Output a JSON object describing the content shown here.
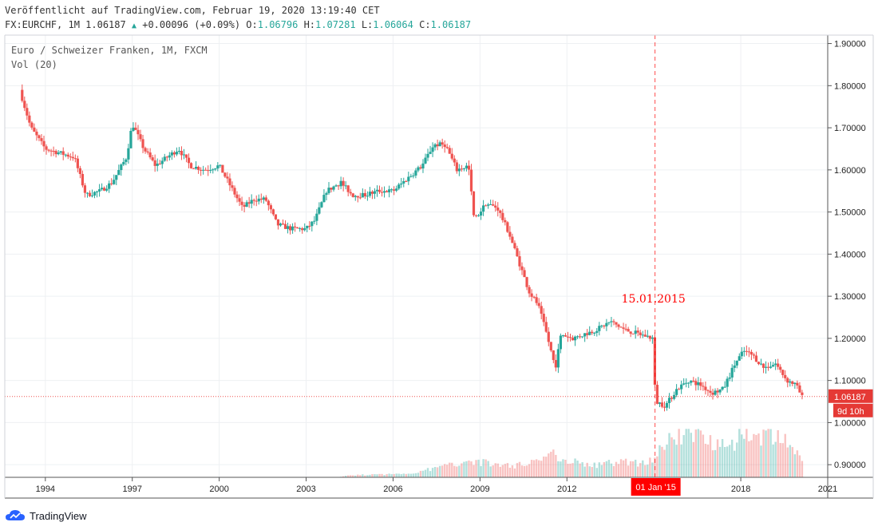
{
  "header": {
    "published": "Veröffentlicht auf TradingView.com, Februar 19, 2020 13:19:40 CET",
    "symbol": "FX:EURCHF, 1M",
    "last": "1.06187",
    "change": "+0.00096 (+0.09%)",
    "o_label": "O:",
    "o_value": "1.06796",
    "h_label": "H:",
    "h_value": "1.07281",
    "l_label": "L:",
    "l_value": "1.06064",
    "c_label": "C:",
    "c_value": "1.06187"
  },
  "legend": {
    "symbol_name": "Euro / Schweizer Franken, 1M, FXCM",
    "volume": "Vol (20)"
  },
  "footer": {
    "brand": "TradingView"
  },
  "colors": {
    "up": "#26a69a",
    "down": "#ef5350",
    "marker": "#ff0000",
    "grid": "#eef0f3"
  },
  "chart_data": {
    "type": "candlestick",
    "y_ticks": [
      "1.90000",
      "1.80000",
      "1.70000",
      "1.60000",
      "1.50000",
      "1.40000",
      "1.30000",
      "1.20000",
      "1.10000",
      "1.00000",
      "0.90000"
    ],
    "x_ticks": [
      "1994",
      "1997",
      "2000",
      "2003",
      "2006",
      "2009",
      "2012",
      "2018",
      "2021"
    ],
    "ylim": [
      0.87,
      1.92
    ],
    "xlim": [
      1992.6,
      2021.0
    ],
    "last_price": "1.06187",
    "last_price_value": 1.06187,
    "countdown": "9d 10h",
    "event_line": {
      "x": 2015.04,
      "label": "15.01.2015",
      "axis_label": "01 Jan '15"
    },
    "price_path": [
      [
        1993.2,
        1.77
      ],
      [
        1993.5,
        1.7
      ],
      [
        1994.0,
        1.65
      ],
      [
        1994.5,
        1.64
      ],
      [
        1995.0,
        1.63
      ],
      [
        1995.4,
        1.54
      ],
      [
        1995.9,
        1.55
      ],
      [
        1996.3,
        1.57
      ],
      [
        1996.8,
        1.63
      ],
      [
        1997.0,
        1.71
      ],
      [
        1997.4,
        1.65
      ],
      [
        1997.8,
        1.61
      ],
      [
        1998.2,
        1.63
      ],
      [
        1998.6,
        1.65
      ],
      [
        1999.0,
        1.61
      ],
      [
        1999.5,
        1.6
      ],
      [
        2000.0,
        1.61
      ],
      [
        2000.4,
        1.56
      ],
      [
        2000.8,
        1.51
      ],
      [
        2001.2,
        1.53
      ],
      [
        2001.6,
        1.53
      ],
      [
        2002.0,
        1.47
      ],
      [
        2002.5,
        1.46
      ],
      [
        2003.0,
        1.46
      ],
      [
        2003.3,
        1.48
      ],
      [
        2003.7,
        1.55
      ],
      [
        2004.2,
        1.57
      ],
      [
        2004.6,
        1.54
      ],
      [
        2005.0,
        1.54
      ],
      [
        2005.5,
        1.55
      ],
      [
        2006.0,
        1.55
      ],
      [
        2006.5,
        1.58
      ],
      [
        2007.0,
        1.61
      ],
      [
        2007.4,
        1.66
      ],
      [
        2007.8,
        1.66
      ],
      [
        2008.2,
        1.6
      ],
      [
        2008.6,
        1.61
      ],
      [
        2008.8,
        1.48
      ],
      [
        2009.2,
        1.52
      ],
      [
        2009.6,
        1.51
      ],
      [
        2010.0,
        1.45
      ],
      [
        2010.4,
        1.37
      ],
      [
        2010.7,
        1.31
      ],
      [
        2011.0,
        1.28
      ],
      [
        2011.3,
        1.21
      ],
      [
        2011.6,
        1.13
      ],
      [
        2011.8,
        1.21
      ],
      [
        2012.2,
        1.2
      ],
      [
        2012.6,
        1.21
      ],
      [
        2013.0,
        1.22
      ],
      [
        2013.5,
        1.24
      ],
      [
        2014.0,
        1.22
      ],
      [
        2014.5,
        1.21
      ],
      [
        2014.98,
        1.2
      ],
      [
        2015.05,
        1.05
      ],
      [
        2015.4,
        1.04
      ],
      [
        2015.8,
        1.08
      ],
      [
        2016.2,
        1.1
      ],
      [
        2016.6,
        1.09
      ],
      [
        2017.0,
        1.07
      ],
      [
        2017.4,
        1.08
      ],
      [
        2017.8,
        1.14
      ],
      [
        2018.1,
        1.17
      ],
      [
        2018.4,
        1.16
      ],
      [
        2018.8,
        1.13
      ],
      [
        2019.2,
        1.14
      ],
      [
        2019.6,
        1.1
      ],
      [
        2019.9,
        1.09
      ],
      [
        2020.12,
        1.06
      ]
    ],
    "volume_profile": [
      [
        2004.1,
        0.0
      ],
      [
        2004.5,
        0.9
      ],
      [
        2005.5,
        1.2
      ],
      [
        2006.5,
        1.6
      ],
      [
        2007.3,
        3.5
      ],
      [
        2008.0,
        5.5
      ],
      [
        2008.6,
        7.5
      ],
      [
        2009.3,
        6.0
      ],
      [
        2010.2,
        5.0
      ],
      [
        2010.8,
        7.0
      ],
      [
        2011.5,
        10.0
      ],
      [
        2012.2,
        7.0
      ],
      [
        2013.0,
        5.0
      ],
      [
        2013.8,
        7.0
      ],
      [
        2014.5,
        6.0
      ],
      [
        2014.9,
        8.0
      ],
      [
        2015.1,
        10.0
      ],
      [
        2015.6,
        17.0
      ],
      [
        2016.3,
        20.0
      ],
      [
        2017.0,
        16.0
      ],
      [
        2017.7,
        15.0
      ],
      [
        2018.3,
        20.0
      ],
      [
        2018.9,
        17.0
      ],
      [
        2019.5,
        16.0
      ],
      [
        2020.0,
        11.0
      ],
      [
        2020.12,
        7.0
      ]
    ],
    "volume_max": 20.0
  }
}
